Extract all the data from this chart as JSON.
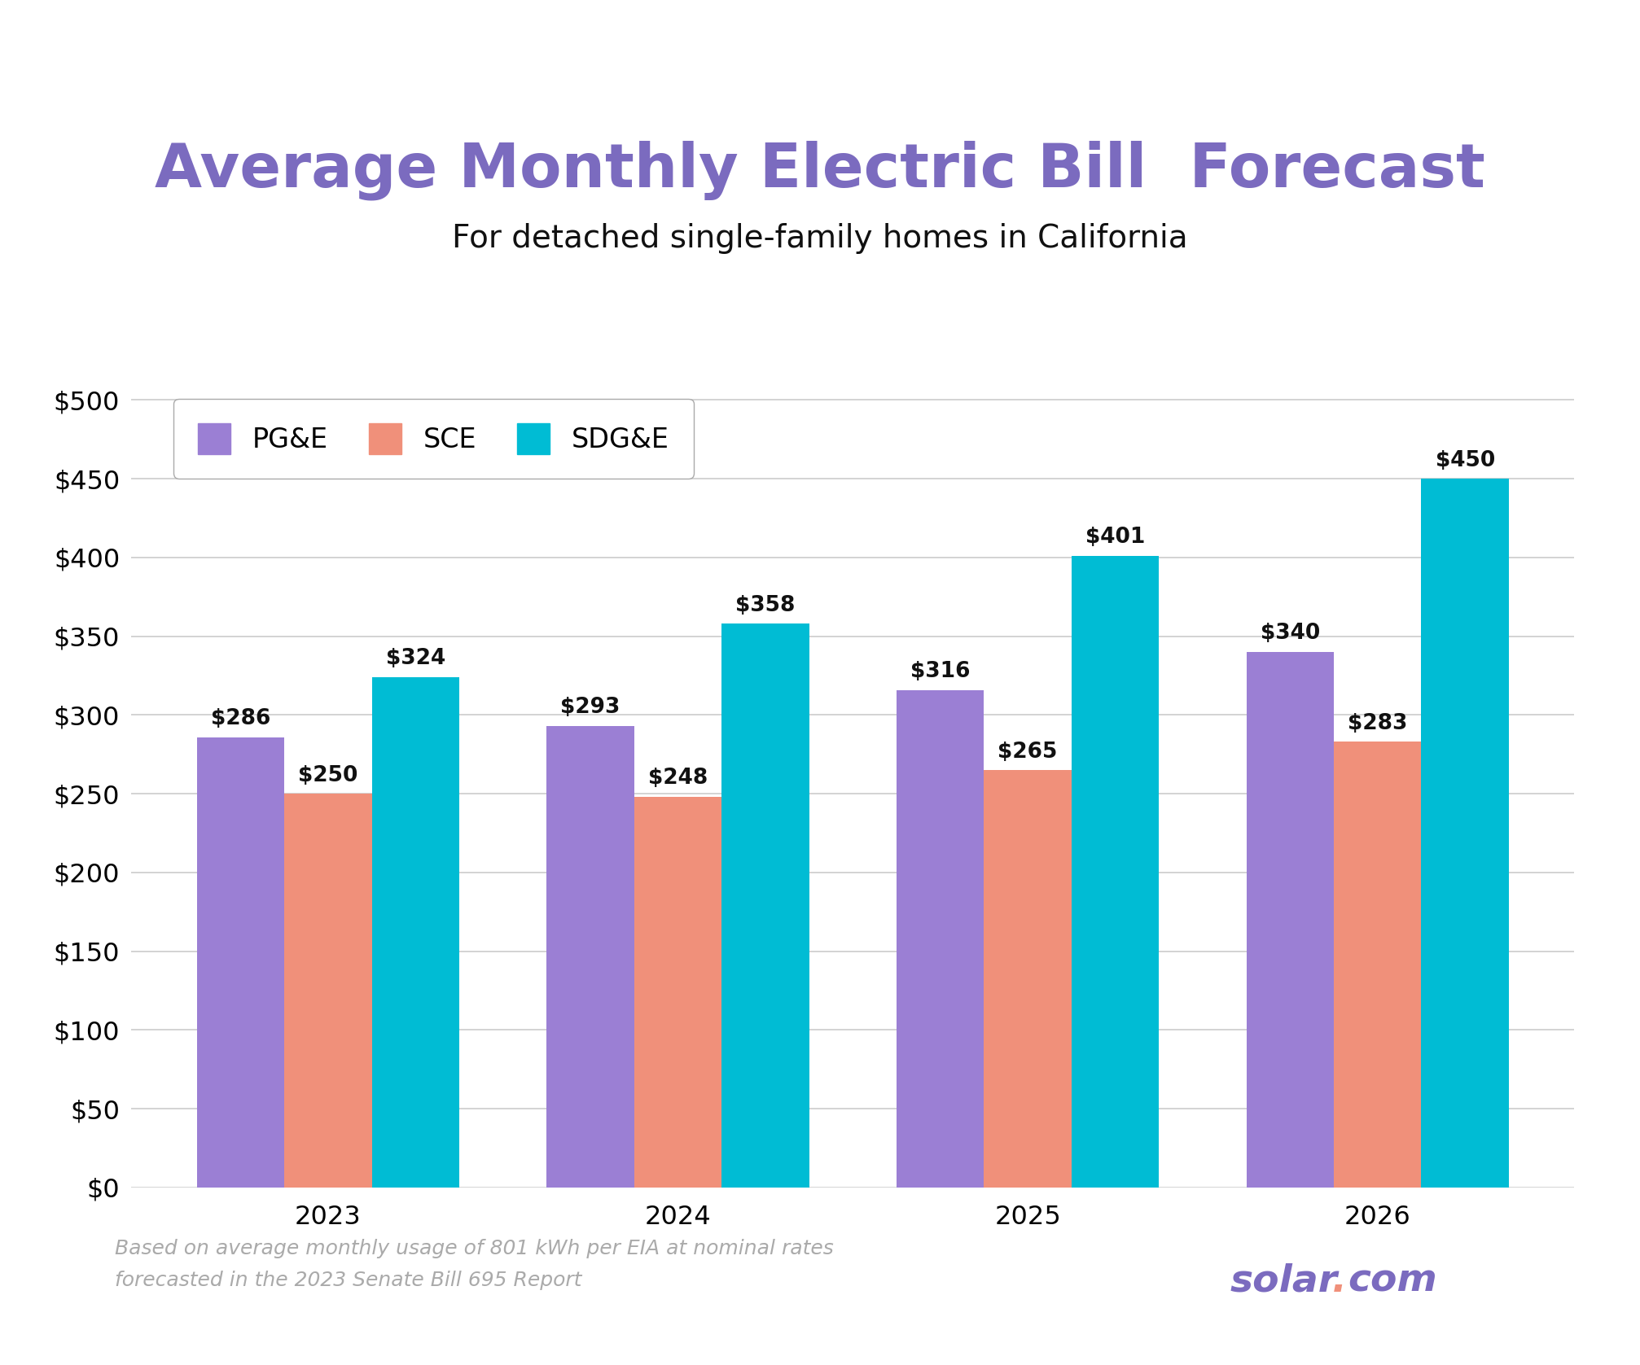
{
  "title": "Average Monthly Electric Bill  Forecast",
  "subtitle": "For detached single-family homes in California",
  "footnote_line1": "Based on average monthly usage of 801 kWh per EIA at nominal rates",
  "footnote_line2": "forecasted in the 2023 Senate Bill 695 Report",
  "categories": [
    "2023",
    "2024",
    "2025",
    "2026"
  ],
  "series": {
    "PG&E": [
      286,
      293,
      316,
      340
    ],
    "SCE": [
      250,
      248,
      265,
      283
    ],
    "SDG&E": [
      324,
      358,
      401,
      450
    ]
  },
  "colors": {
    "PG&E": "#9b7fd4",
    "SCE": "#f0907a",
    "SDG&E": "#00bcd4"
  },
  "title_color": "#7b6bbf",
  "subtitle_color": "#111111",
  "ylim": [
    0,
    520
  ],
  "yticks": [
    0,
    50,
    100,
    150,
    200,
    250,
    300,
    350,
    400,
    450,
    500
  ],
  "bar_width": 0.25,
  "background_color": "#ffffff",
  "border_color": "#a08ad0",
  "grid_color": "#cccccc",
  "annotation_fontsize": 19,
  "tick_fontsize": 23,
  "title_fontsize": 54,
  "subtitle_fontsize": 28,
  "legend_fontsize": 24,
  "footnote_fontsize": 18,
  "watermark_fontsize": 34,
  "solar_color": "#7b6bbf",
  "dot_color": "#f0907a"
}
